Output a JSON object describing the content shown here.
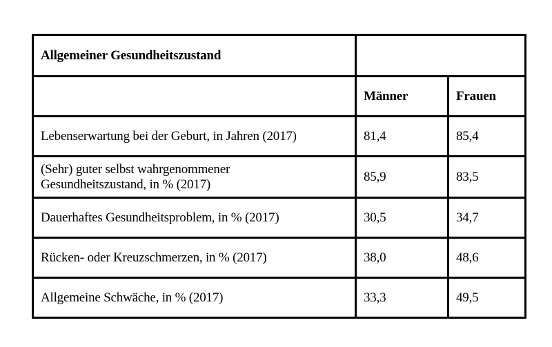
{
  "table": {
    "title": "Allgemeiner Gesundheitszustand",
    "columns": [
      "Männer",
      "Frauen"
    ],
    "rows": [
      {
        "label": "Lebenserwartung bei der Geburt, in Jahren (2017)",
        "maenner": "81,4",
        "frauen": "85,4"
      },
      {
        "label_line1": "(Sehr) guter selbst wahrgenommener",
        "label_line2": "Gesundheitszustand, in % (2017)",
        "maenner": "85,9",
        "frauen": "83,5"
      },
      {
        "label": "Dauerhaftes Gesundheitsproblem, in % (2017)",
        "maenner": "30,5",
        "frauen": "34,7"
      },
      {
        "label": "Rücken- oder Kreuzschmerzen, in % (2017)",
        "maenner": "38,0",
        "frauen": "48,6"
      },
      {
        "label": "Allgemeine Schwäche, in % (2017)",
        "maenner": "33,3",
        "frauen": "49,5"
      }
    ]
  }
}
